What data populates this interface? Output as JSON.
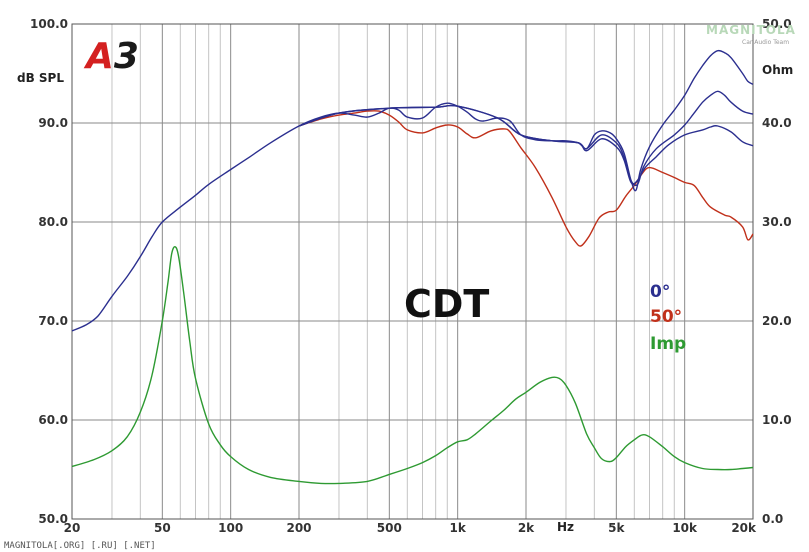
{
  "chart_data": {
    "type": "line",
    "title": "CDT",
    "ylabel_left": "dB SPL",
    "ylabel_right": "Ohm",
    "xlabel": "Hz",
    "x_scale": "log",
    "xlim": [
      20,
      20000
    ],
    "ylim_left": [
      50,
      100
    ],
    "ylim_right": [
      0,
      50
    ],
    "grid": true,
    "legend_position": "center-right",
    "x_ticks": [
      {
        "v": 20,
        "label": "20"
      },
      {
        "v": 50,
        "label": "50"
      },
      {
        "v": 100,
        "label": "100"
      },
      {
        "v": 200,
        "label": "200"
      },
      {
        "v": 500,
        "label": "500"
      },
      {
        "v": 1000,
        "label": "1k"
      },
      {
        "v": 2000,
        "label": "2k"
      },
      {
        "v": 5000,
        "label": "5k"
      },
      {
        "v": 10000,
        "label": "10k"
      },
      {
        "v": 20000,
        "label": "20k"
      }
    ],
    "y_ticks_left": [
      "50.0",
      "60.0",
      "70.0",
      "80.0",
      "90.0",
      "100.0"
    ],
    "y_ticks_right": [
      "0.0",
      "10.0",
      "20.0",
      "30.0",
      "40.0",
      "50.0"
    ],
    "series": [
      {
        "name": "0°",
        "color": "#2b2f8f",
        "axis": "left",
        "points": [
          [
            20,
            69
          ],
          [
            23,
            69.6
          ],
          [
            26,
            70.5
          ],
          [
            30,
            72.5
          ],
          [
            35,
            74.5
          ],
          [
            40,
            76.5
          ],
          [
            45,
            78.5
          ],
          [
            50,
            80
          ],
          [
            60,
            81.5
          ],
          [
            70,
            82.7
          ],
          [
            80,
            83.8
          ],
          [
            100,
            85.3
          ],
          [
            120,
            86.5
          ],
          [
            150,
            88
          ],
          [
            200,
            89.7
          ],
          [
            250,
            90.6
          ],
          [
            300,
            91
          ],
          [
            350,
            90.8
          ],
          [
            400,
            90.6
          ],
          [
            450,
            91
          ],
          [
            500,
            91.5
          ],
          [
            550,
            91.3
          ],
          [
            600,
            90.6
          ],
          [
            700,
            90.5
          ],
          [
            800,
            91.6
          ],
          [
            900,
            92
          ],
          [
            1000,
            91.7
          ],
          [
            1100,
            91.1
          ],
          [
            1200,
            90.4
          ],
          [
            1300,
            90.2
          ],
          [
            1500,
            90.5
          ],
          [
            1700,
            90.2
          ],
          [
            1900,
            88.8
          ],
          [
            2200,
            88.3
          ],
          [
            2600,
            88.2
          ],
          [
            3000,
            88.2
          ],
          [
            3400,
            88
          ],
          [
            3700,
            87.4
          ],
          [
            4000,
            88.8
          ],
          [
            4300,
            89.2
          ],
          [
            4700,
            89
          ],
          [
            5000,
            88.4
          ],
          [
            5400,
            87
          ],
          [
            5800,
            84.2
          ],
          [
            6100,
            83.2
          ],
          [
            6400,
            85.3
          ],
          [
            7000,
            87.6
          ],
          [
            8000,
            89.8
          ],
          [
            9000,
            91.3
          ],
          [
            10000,
            92.8
          ],
          [
            11000,
            94.5
          ],
          [
            12000,
            95.8
          ],
          [
            13000,
            96.8
          ],
          [
            14000,
            97.3
          ],
          [
            15000,
            97.1
          ],
          [
            16000,
            96.6
          ],
          [
            18000,
            95
          ],
          [
            19000,
            94.2
          ],
          [
            20000,
            93.9
          ]
        ]
      },
      {
        "name": "",
        "color": "#2b2f8f",
        "axis": "left",
        "points": [
          [
            200,
            89.7
          ],
          [
            300,
            91
          ],
          [
            500,
            91.5
          ],
          [
            800,
            91.6
          ],
          [
            1000,
            91.7
          ],
          [
            1500,
            90.5
          ],
          [
            1900,
            88.8
          ],
          [
            2600,
            88.2
          ],
          [
            3400,
            88
          ],
          [
            3700,
            87.4
          ],
          [
            4300,
            88.8
          ],
          [
            5000,
            88
          ],
          [
            5400,
            86.6
          ],
          [
            5800,
            84.2
          ],
          [
            6200,
            83.8
          ],
          [
            6600,
            85.6
          ],
          [
            7500,
            87.4
          ],
          [
            9000,
            88.8
          ],
          [
            10000,
            89.8
          ],
          [
            11000,
            91
          ],
          [
            12000,
            92.1
          ],
          [
            13000,
            92.8
          ],
          [
            14000,
            93.2
          ],
          [
            15000,
            92.8
          ],
          [
            16000,
            92.1
          ],
          [
            18000,
            91.2
          ],
          [
            20000,
            90.9
          ]
        ]
      },
      {
        "name": "",
        "color": "#2b2f8f",
        "axis": "left",
        "points": [
          [
            200,
            89.7
          ],
          [
            300,
            91
          ],
          [
            500,
            91.5
          ],
          [
            800,
            91.6
          ],
          [
            1000,
            91.7
          ],
          [
            1500,
            90.5
          ],
          [
            1900,
            88.8
          ],
          [
            2600,
            88.2
          ],
          [
            3400,
            88
          ],
          [
            3700,
            87.2
          ],
          [
            4300,
            88.4
          ],
          [
            5000,
            87.6
          ],
          [
            5400,
            86.3
          ],
          [
            5800,
            84
          ],
          [
            6200,
            84.2
          ],
          [
            6700,
            85.5
          ],
          [
            7500,
            86.6
          ],
          [
            8500,
            87.8
          ],
          [
            10000,
            88.8
          ],
          [
            12000,
            89.3
          ],
          [
            13000,
            89.6
          ],
          [
            14000,
            89.7
          ],
          [
            16000,
            89.1
          ],
          [
            18000,
            88.1
          ],
          [
            20000,
            87.7
          ]
        ]
      },
      {
        "name": "50°",
        "color": "#c0301a",
        "axis": "left",
        "points": [
          [
            200,
            89.7
          ],
          [
            250,
            90.4
          ],
          [
            300,
            90.8
          ],
          [
            350,
            91
          ],
          [
            400,
            91.2
          ],
          [
            450,
            91.2
          ],
          [
            500,
            90.8
          ],
          [
            550,
            90.1
          ],
          [
            600,
            89.3
          ],
          [
            700,
            89
          ],
          [
            800,
            89.5
          ],
          [
            900,
            89.8
          ],
          [
            1000,
            89.6
          ],
          [
            1100,
            88.9
          ],
          [
            1200,
            88.5
          ],
          [
            1400,
            89.2
          ],
          [
            1600,
            89.4
          ],
          [
            1700,
            89.1
          ],
          [
            1900,
            87.5
          ],
          [
            2200,
            85.5
          ],
          [
            2600,
            82.5
          ],
          [
            3000,
            79.5
          ],
          [
            3300,
            78
          ],
          [
            3500,
            77.6
          ],
          [
            3800,
            78.6
          ],
          [
            4200,
            80.4
          ],
          [
            4600,
            81
          ],
          [
            5000,
            81.2
          ],
          [
            5500,
            82.6
          ],
          [
            6000,
            83.7
          ],
          [
            6500,
            84.9
          ],
          [
            7000,
            85.5
          ],
          [
            8000,
            85
          ],
          [
            9000,
            84.5
          ],
          [
            10000,
            84
          ],
          [
            11000,
            83.7
          ],
          [
            12000,
            82.5
          ],
          [
            13000,
            81.5
          ],
          [
            15000,
            80.7
          ],
          [
            16000,
            80.5
          ],
          [
            18000,
            79.5
          ],
          [
            19000,
            78.2
          ],
          [
            20000,
            78.8
          ]
        ]
      },
      {
        "name": "Imp",
        "color": "#2e9a32",
        "axis": "right",
        "points": [
          [
            20,
            5.3
          ],
          [
            25,
            6
          ],
          [
            30,
            6.9
          ],
          [
            35,
            8.3
          ],
          [
            40,
            10.8
          ],
          [
            45,
            14.5
          ],
          [
            50,
            20
          ],
          [
            53,
            24
          ],
          [
            55,
            26.8
          ],
          [
            57,
            27.5
          ],
          [
            59,
            26.5
          ],
          [
            62,
            23
          ],
          [
            66,
            18
          ],
          [
            70,
            14.2
          ],
          [
            80,
            9.6
          ],
          [
            90,
            7.5
          ],
          [
            100,
            6.3
          ],
          [
            120,
            5
          ],
          [
            150,
            4.2
          ],
          [
            200,
            3.8
          ],
          [
            250,
            3.6
          ],
          [
            300,
            3.6
          ],
          [
            400,
            3.8
          ],
          [
            500,
            4.5
          ],
          [
            600,
            5.1
          ],
          [
            700,
            5.7
          ],
          [
            800,
            6.4
          ],
          [
            900,
            7.2
          ],
          [
            1000,
            7.8
          ],
          [
            1100,
            8
          ],
          [
            1200,
            8.6
          ],
          [
            1400,
            9.9
          ],
          [
            1600,
            11
          ],
          [
            1800,
            12.1
          ],
          [
            2000,
            12.8
          ],
          [
            2300,
            13.8
          ],
          [
            2600,
            14.3
          ],
          [
            2800,
            14.2
          ],
          [
            3000,
            13.5
          ],
          [
            3300,
            11.7
          ],
          [
            3700,
            8.6
          ],
          [
            4000,
            7.2
          ],
          [
            4300,
            6.1
          ],
          [
            4700,
            5.8
          ],
          [
            5000,
            6.2
          ],
          [
            5500,
            7.3
          ],
          [
            6000,
            8
          ],
          [
            6500,
            8.5
          ],
          [
            7000,
            8.3
          ],
          [
            8000,
            7.3
          ],
          [
            9000,
            6.3
          ],
          [
            10000,
            5.7
          ],
          [
            12000,
            5.1
          ],
          [
            14000,
            5
          ],
          [
            16000,
            5
          ],
          [
            18000,
            5.1
          ],
          [
            20000,
            5.2
          ]
        ]
      }
    ]
  },
  "legend": [
    {
      "label": "0°",
      "color": "#2b2f8f"
    },
    {
      "label": "50°",
      "color": "#c0301a"
    },
    {
      "label": "Imp",
      "color": "#2e9a32"
    }
  ],
  "logo": {
    "text": "A3",
    "a_color": "#d42020",
    "three_color": "#1a1a1a"
  },
  "watermark_top": {
    "text": "MAGNITOLA",
    "sub": "Car Audio Team"
  },
  "watermark_bottom": "MAGNITOLA[.ORG] [.RU] [.NET]"
}
